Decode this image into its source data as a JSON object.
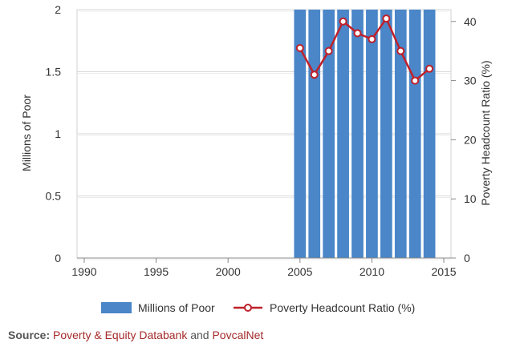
{
  "chart_data": {
    "type": "bar",
    "x": [
      2005,
      2006,
      2007,
      2008,
      2009,
      2010,
      2011,
      2012,
      2013,
      2014
    ],
    "series": [
      {
        "name": "Millions of Poor",
        "type": "bar",
        "axis": "left",
        "color": "#4a86c8",
        "values": [
          2,
          2,
          2,
          2,
          2,
          2,
          2,
          2,
          2,
          2
        ]
      },
      {
        "name": "Poverty Headcount Ratio (%)",
        "type": "line",
        "axis": "right",
        "color": "#c0202a",
        "values": [
          35.5,
          31,
          35,
          40,
          38,
          37,
          40.5,
          35,
          30,
          32
        ]
      }
    ],
    "xlim": [
      1989.5,
      2015.5
    ],
    "xticks": [
      "1990",
      "1995",
      "2000",
      "2005",
      "2010",
      "2015"
    ],
    "ylim_left": [
      0,
      2
    ],
    "yticks_left": [
      "0",
      "0.5",
      "1",
      "1.5",
      "2"
    ],
    "ylim_right": [
      0,
      42
    ],
    "yticks_right": [
      "0",
      "10",
      "20",
      "30",
      "40"
    ],
    "ylabel_left": "Millions of Poor",
    "ylabel_right": "Poverty Headcount Ratio (%)",
    "grid": true,
    "legend_placement": "bottom-center"
  },
  "legend": {
    "bar_label": "Millions of Poor",
    "line_label": "Poverty Headcount Ratio (%)"
  },
  "source": {
    "prefix": "Source:",
    "link1": "Poverty & Equity Databank",
    "joiner": "and",
    "link2": "PovcalNet"
  }
}
